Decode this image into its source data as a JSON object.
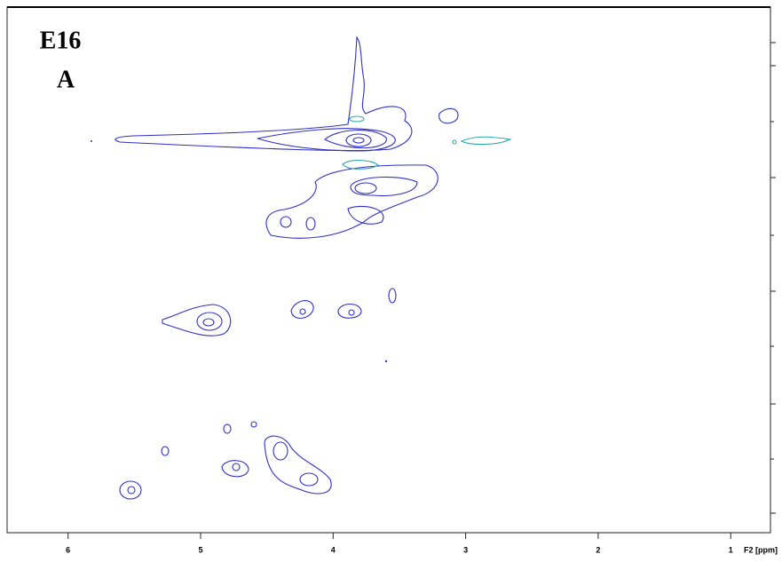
{
  "chart_data": {
    "type": "contour",
    "title": "E16",
    "subtitle": "A",
    "x_label": "F2 [ppm]",
    "xlim": [
      6.46,
      0.7
    ],
    "xticks": [
      6,
      5,
      4,
      3,
      2,
      1
    ],
    "color": "#3030c8",
    "negative_color": "#30a8a8"
  }
}
